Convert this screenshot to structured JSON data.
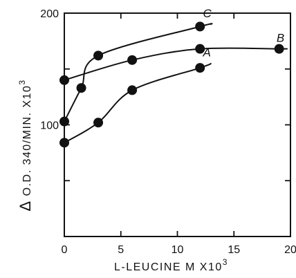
{
  "chart_data": {
    "type": "scatter",
    "title": "",
    "xlabel": "L-LEUCINE  M X10",
    "xlabel_superscript": "3",
    "ylabel": "O.D. 340/MIN. X10",
    "ylabel_superscript": "3",
    "ylabel_symbol": "Δ",
    "xlim": [
      0,
      20
    ],
    "ylim": [
      0,
      200
    ],
    "x_ticks": [
      0,
      5,
      10,
      15,
      20
    ],
    "y_ticks": [
      0,
      50,
      100,
      150,
      200
    ],
    "x_tick_labels": [
      "0",
      "5",
      "10",
      "15",
      "20"
    ],
    "y_tick_labels": [
      "100",
      "200"
    ],
    "y_tick_label_values": [
      100,
      200
    ],
    "grid": false,
    "series": [
      {
        "name": "A",
        "x": [
          0,
          3,
          6,
          12
        ],
        "y": [
          84,
          102,
          131,
          151
        ],
        "curve_end": [
          13,
          155
        ]
      },
      {
        "name": "B",
        "x": [
          0,
          6,
          12,
          19
        ],
        "y": [
          140,
          158,
          168,
          168
        ],
        "curve_end": [
          19.5,
          168
        ]
      },
      {
        "name": "C",
        "x": [
          0,
          1.5,
          3,
          12
        ],
        "y": [
          103,
          133,
          162,
          188
        ],
        "curve_end": [
          13,
          190
        ]
      }
    ]
  }
}
